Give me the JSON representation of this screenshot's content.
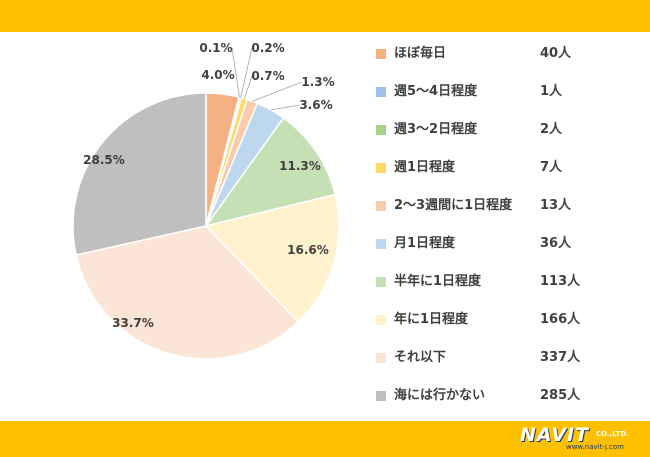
{
  "chart_data": {
    "type": "pie",
    "title": "",
    "start_angle_deg": 0,
    "direction": "clockwise",
    "slices": [
      {
        "label": "ほぼ毎日",
        "count": "40人",
        "percent": 4.0,
        "percent_label": "4.0%",
        "color": "#f4b183"
      },
      {
        "label": "週5～4日程度",
        "count": "1人",
        "percent": 0.1,
        "percent_label": "0.1%",
        "color": "#9dc3e6"
      },
      {
        "label": "週3～2日程度",
        "count": "2人",
        "percent": 0.2,
        "percent_label": "0.2%",
        "color": "#a9d18e"
      },
      {
        "label": "週1日程度",
        "count": "7人",
        "percent": 0.7,
        "percent_label": "0.7%",
        "color": "#ffd966"
      },
      {
        "label": "2～3週間に1日程度",
        "count": "13人",
        "percent": 1.3,
        "percent_label": "1.3%",
        "color": "#f8cbad"
      },
      {
        "label": "月1日程度",
        "count": "36人",
        "percent": 3.6,
        "percent_label": "3.6%",
        "color": "#bdd7ee"
      },
      {
        "label": "半年に1日程度",
        "count": "113人",
        "percent": 11.3,
        "percent_label": "11.3%",
        "color": "#c5e0b4"
      },
      {
        "label": "年に1日程度",
        "count": "166人",
        "percent": 16.6,
        "percent_label": "16.6%",
        "color": "#fff2cc"
      },
      {
        "label": "それ以下",
        "count": "337人",
        "percent": 33.7,
        "percent_label": "33.7%",
        "color": "#fbe5d6"
      },
      {
        "label": "海には行かない",
        "count": "285人",
        "percent": 28.5,
        "percent_label": "28.5%",
        "color": "#bfbfbf"
      }
    ],
    "legend_position": "right"
  },
  "legend": [
    {
      "label": "ほぼ毎日",
      "count": "40人",
      "color": "#f4b183"
    },
    {
      "label": "週5～4日程度",
      "count": "1人",
      "color": "#9dc3e6"
    },
    {
      "label": "週3～2日程度",
      "count": "2人",
      "color": "#a9d18e"
    },
    {
      "label": "週1日程度",
      "count": "7人",
      "color": "#ffd966"
    },
    {
      "label": "2～3週間に1日程度",
      "count": "13人",
      "color": "#f8cbad"
    },
    {
      "label": "月1日程度",
      "count": "36人",
      "color": "#bdd7ee"
    },
    {
      "label": "半年に1日程度",
      "count": "113人",
      "color": "#c5e0b4"
    },
    {
      "label": "年に1日程度",
      "count": "166人",
      "color": "#fff2cc"
    },
    {
      "label": "それ以下",
      "count": "337人",
      "color": "#fbe5d6"
    },
    {
      "label": "海には行かない",
      "count": "285人",
      "color": "#bfbfbf"
    }
  ],
  "branding": {
    "logo_text": "NAVIT",
    "company_suffix": "CO.,LTD.",
    "url": "www.navit-j.com",
    "band_color": "#ffc000"
  }
}
